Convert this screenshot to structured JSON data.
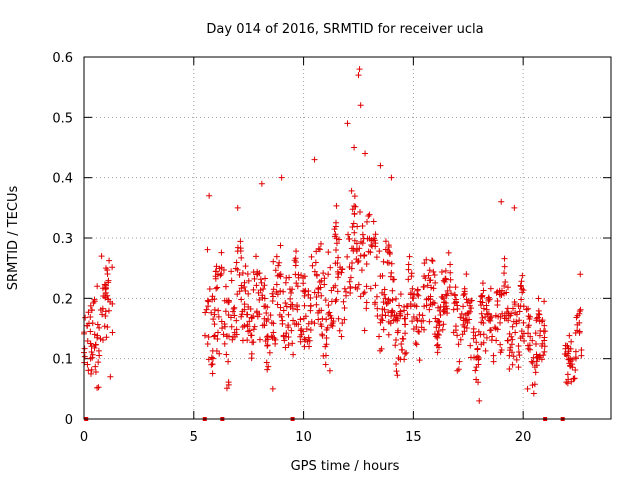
{
  "chart_data": {
    "type": "scatter",
    "title": "Day 014 of 2016, SRMTID for receiver ucla",
    "xlabel": "GPS time / hours",
    "ylabel": "SRMTID / TECUs",
    "xlim": [
      0,
      24
    ],
    "ylim": [
      0,
      0.6
    ],
    "x_ticks": [
      0,
      5,
      10,
      15,
      20
    ],
    "y_ticks": [
      0,
      0.1,
      0.2,
      0.3,
      0.4,
      0.5,
      0.6
    ],
    "x_tick_labels": [
      "0",
      "5",
      "10",
      "15",
      "20"
    ],
    "y_tick_labels": [
      "0",
      "0.1",
      "0.2",
      "0.3",
      "0.4",
      "0.5",
      "0.6"
    ],
    "grid": true,
    "marker": "+",
    "series_color": "#e00000",
    "gap_markers_x": [
      0.1,
      5.5,
      6.3,
      9.5,
      21.0,
      21.8
    ],
    "segments": [
      {
        "x": [
          0.0,
          1.3
        ],
        "base": [
          0.1,
          0.2
        ],
        "spread": 0.06
      },
      {
        "x": [
          5.5,
          6.6
        ],
        "base": [
          0.2,
          0.15
        ],
        "spread": 0.08
      },
      {
        "x": [
          6.6,
          8.0
        ],
        "base": [
          0.2,
          0.2
        ],
        "spread": 0.07
      },
      {
        "x": [
          8.0,
          9.5
        ],
        "base": [
          0.18,
          0.2
        ],
        "spread": 0.07
      },
      {
        "x": [
          9.5,
          11.0
        ],
        "base": [
          0.17,
          0.22
        ],
        "spread": 0.07
      },
      {
        "x": [
          11.0,
          12.6
        ],
        "base": [
          0.2,
          0.3
        ],
        "spread": 0.08
      },
      {
        "x": [
          12.6,
          14.0
        ],
        "base": [
          0.28,
          0.2
        ],
        "spread": 0.08
      },
      {
        "x": [
          14.0,
          15.5
        ],
        "base": [
          0.16,
          0.18
        ],
        "spread": 0.06
      },
      {
        "x": [
          15.5,
          17.0
        ],
        "base": [
          0.2,
          0.19
        ],
        "spread": 0.05
      },
      {
        "x": [
          17.0,
          18.5
        ],
        "base": [
          0.15,
          0.15
        ],
        "spread": 0.05
      },
      {
        "x": [
          18.5,
          20.0
        ],
        "base": [
          0.18,
          0.15
        ],
        "spread": 0.06
      },
      {
        "x": [
          20.0,
          21.0
        ],
        "base": [
          0.14,
          0.12
        ],
        "spread": 0.05
      },
      {
        "x": [
          21.9,
          22.7
        ],
        "base": [
          0.11,
          0.13
        ],
        "spread": 0.04
      }
    ],
    "points": [
      [
        0.0,
        0.11
      ],
      [
        0.3,
        0.1
      ],
      [
        0.6,
        0.22
      ],
      [
        0.8,
        0.27
      ],
      [
        1.0,
        0.25
      ],
      [
        1.2,
        0.07
      ],
      [
        5.7,
        0.37
      ],
      [
        5.8,
        0.09
      ],
      [
        7.0,
        0.35
      ],
      [
        8.1,
        0.39
      ],
      [
        8.6,
        0.05
      ],
      [
        9.0,
        0.4
      ],
      [
        10.5,
        0.43
      ],
      [
        11.2,
        0.08
      ],
      [
        12.0,
        0.49
      ],
      [
        12.3,
        0.45
      ],
      [
        12.5,
        0.57
      ],
      [
        12.55,
        0.58
      ],
      [
        12.6,
        0.52
      ],
      [
        12.8,
        0.44
      ],
      [
        13.5,
        0.42
      ],
      [
        14.0,
        0.4
      ],
      [
        17.0,
        0.08
      ],
      [
        18.0,
        0.03
      ],
      [
        19.0,
        0.36
      ],
      [
        19.6,
        0.35
      ],
      [
        20.2,
        0.05
      ],
      [
        22.6,
        0.24
      ]
    ]
  }
}
